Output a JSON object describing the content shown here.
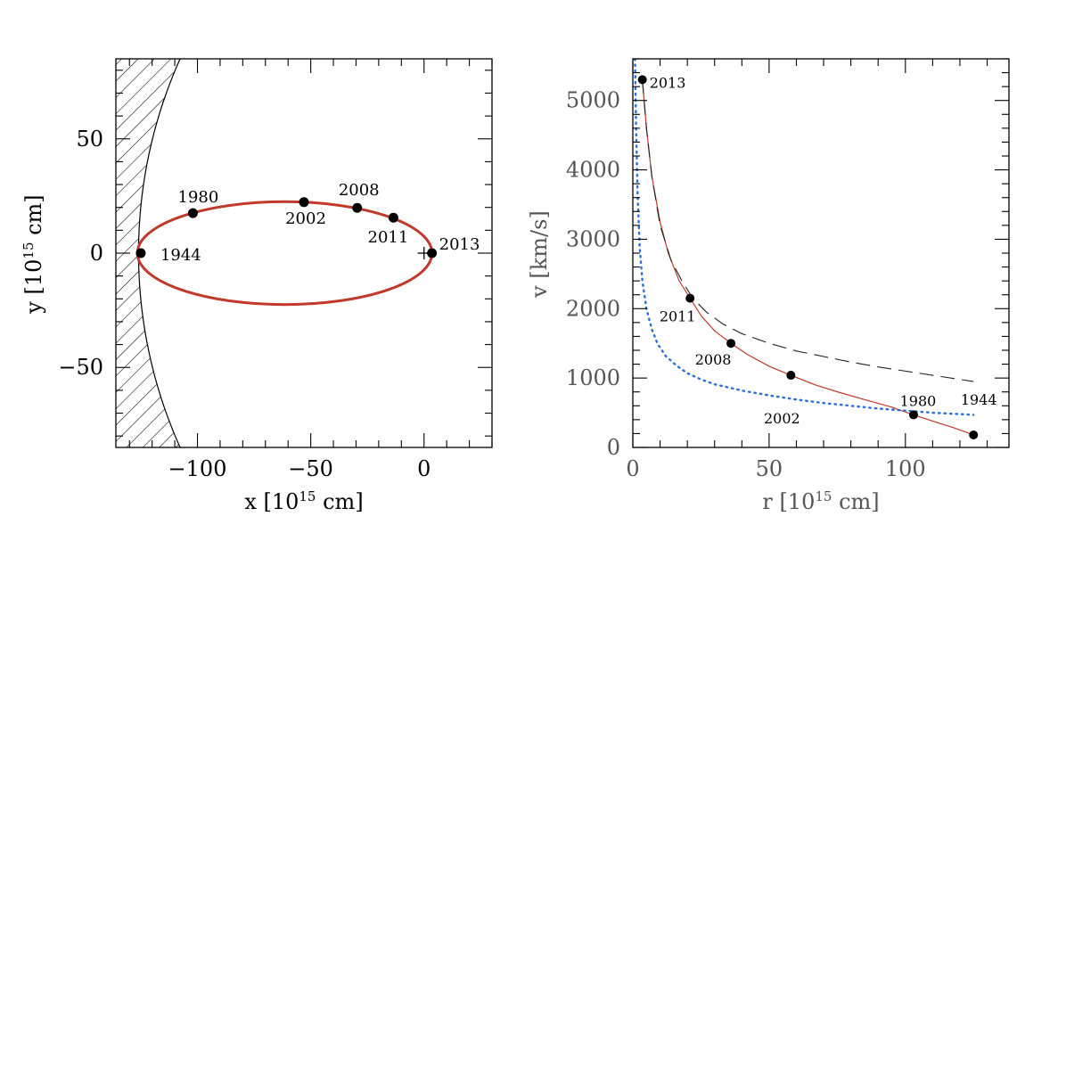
{
  "chart_data": [
    {
      "type": "scatter",
      "panel": "left",
      "xlabel_parts": [
        "x [10",
        "15",
        " cm]"
      ],
      "ylabel_parts": [
        "y [10",
        "15",
        " cm]"
      ],
      "xlim": [
        -136,
        30
      ],
      "ylim": [
        -85,
        85
      ],
      "xticks": [
        -100,
        -50,
        0
      ],
      "yticks": [
        -50,
        0,
        50
      ],
      "x_tick_labels": [
        "−100",
        "−50",
        "0"
      ],
      "y_tick_labels": [
        "−50",
        "0",
        "50"
      ],
      "orbit": {
        "center_x": -61.5,
        "center_y": 0,
        "semi_major": 65,
        "semi_minor": 22.5,
        "color": "#c0392b"
      },
      "focus_marker": {
        "x": 0,
        "y": 0,
        "symbol": "+"
      },
      "shaded_region": {
        "arc_center_x": 80,
        "arc_center_y": 0,
        "arc_radius": 206,
        "hatch": "diagonal"
      },
      "points": [
        {
          "label": "1944",
          "x": -125,
          "y": 0
        },
        {
          "label": "1980",
          "x": -102,
          "y": 17.5
        },
        {
          "label": "2002",
          "x": -53,
          "y": 22.3
        },
        {
          "label": "2008",
          "x": -29.5,
          "y": 19.8
        },
        {
          "label": "2011",
          "x": -13.5,
          "y": 15.5
        },
        {
          "label": "2013",
          "x": 3.5,
          "y": 0
        }
      ],
      "grid": false
    },
    {
      "type": "line",
      "panel": "right",
      "xlabel_parts": [
        "r [10",
        "15",
        " cm]"
      ],
      "ylabel": "v [km/s]",
      "xlim": [
        0,
        138
      ],
      "ylim": [
        0,
        5600
      ],
      "xticks": [
        0,
        50,
        100
      ],
      "yticks": [
        0,
        1000,
        2000,
        3000,
        4000,
        5000
      ],
      "x_tick_labels": [
        "0",
        "50",
        "100"
      ],
      "y_tick_labels": [
        "0",
        "1000",
        "2000",
        "3000",
        "4000",
        "5000"
      ],
      "series": [
        {
          "style": "solid",
          "color": "#c0392b",
          "x": [
            3.5,
            5,
            7,
            10,
            13,
            17,
            21,
            25,
            30,
            36,
            42,
            50,
            58,
            67,
            76,
            85,
            95,
            103,
            110,
            118,
            125
          ],
          "y": [
            5300,
            4600,
            3900,
            3250,
            2800,
            2400,
            2150,
            1900,
            1680,
            1500,
            1340,
            1170,
            1040,
            900,
            790,
            690,
            580,
            470,
            380,
            280,
            180
          ]
        },
        {
          "style": "dashed",
          "color": "#222222",
          "x": [
            3.5,
            5,
            7,
            10,
            14,
            18,
            22,
            27,
            33,
            40,
            50,
            60,
            70,
            80,
            90,
            100,
            110,
            120,
            125
          ],
          "y": [
            5300,
            4600,
            3900,
            3200,
            2700,
            2400,
            2150,
            1950,
            1780,
            1640,
            1500,
            1390,
            1310,
            1230,
            1160,
            1100,
            1040,
            980,
            950
          ]
        },
        {
          "style": "dotted",
          "color": "#2a6fd6",
          "x": [
            0.8,
            1.2,
            1.8,
            2.5,
            3.5,
            5,
            7,
            9,
            12,
            16,
            20,
            25,
            30,
            40,
            50,
            60,
            70,
            80,
            90,
            100,
            110,
            120,
            125
          ],
          "y": [
            5600,
            4600,
            3600,
            2900,
            2400,
            2000,
            1700,
            1500,
            1320,
            1180,
            1070,
            980,
            910,
            820,
            750,
            690,
            640,
            600,
            560,
            530,
            500,
            480,
            470
          ]
        }
      ],
      "points": [
        {
          "label": "2013",
          "x": 3.5,
          "y": 5300
        },
        {
          "label": "2011",
          "x": 21,
          "y": 2150
        },
        {
          "label": "2008",
          "x": 36,
          "y": 1500
        },
        {
          "label": "2002",
          "x": 58,
          "y": 1040
        },
        {
          "label": "1980",
          "x": 103,
          "y": 470
        },
        {
          "label": "1944",
          "x": 125,
          "y": 180
        }
      ],
      "grid": false
    }
  ]
}
